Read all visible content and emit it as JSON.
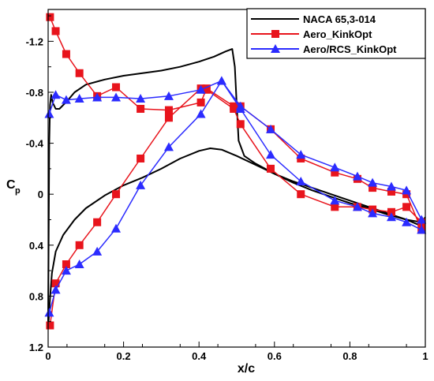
{
  "chart_data": {
    "type": "line",
    "xlabel": "x/c",
    "ylabel": "C",
    "ylabel_sub": "p",
    "xlim": [
      0,
      1
    ],
    "ylim": [
      1.2,
      -1.45
    ],
    "y_inverted": true,
    "x_ticks": [
      0,
      0.2,
      0.4,
      0.6,
      0.8,
      1
    ],
    "x_tick_labels": [
      "0",
      "0.2",
      "0.4",
      "0.6",
      "0.8",
      "1"
    ],
    "y_ticks": [
      -1.2,
      -0.8,
      -0.4,
      0,
      0.4,
      0.8,
      1.2
    ],
    "y_tick_labels": [
      "-1.2",
      "-0.8",
      "-0.4",
      "0",
      "0.4",
      "0.8",
      "1.2"
    ],
    "grid": false,
    "legend_position": "top-right",
    "series": [
      {
        "name": "NACA 65,3-014",
        "color": "#000000",
        "marker": "none",
        "segments": [
          [
            [
              1.0,
              0.18
            ],
            [
              0.99,
              0.22
            ],
            [
              0.95,
              0.2
            ],
            [
              0.9,
              0.16
            ],
            [
              0.85,
              0.11
            ],
            [
              0.8,
              0.07
            ],
            [
              0.75,
              0.02
            ],
            [
              0.7,
              -0.03
            ],
            [
              0.65,
              -0.09
            ],
            [
              0.6,
              -0.16
            ],
            [
              0.55,
              -0.24
            ],
            [
              0.52,
              -0.3
            ],
            [
              0.505,
              -0.42
            ],
            [
              0.5,
              -0.7
            ],
            [
              0.495,
              -1.0
            ],
            [
              0.488,
              -1.14
            ],
            [
              0.47,
              -1.12
            ],
            [
              0.44,
              -1.08
            ],
            [
              0.4,
              -1.04
            ],
            [
              0.35,
              -1.0
            ],
            [
              0.3,
              -0.97
            ],
            [
              0.25,
              -0.95
            ],
            [
              0.2,
              -0.93
            ],
            [
              0.15,
              -0.9
            ],
            [
              0.1,
              -0.86
            ],
            [
              0.07,
              -0.8
            ],
            [
              0.05,
              -0.73
            ],
            [
              0.03,
              -0.67
            ],
            [
              0.02,
              -0.67
            ],
            [
              0.012,
              -0.72
            ],
            [
              0.008,
              -0.78
            ],
            [
              0.005,
              -0.7
            ],
            [
              0.003,
              -0.4
            ],
            [
              0.002,
              0.0
            ],
            [
              0.001,
              0.5
            ],
            [
              0.0,
              1.0
            ]
          ],
          [
            [
              0.0,
              1.05
            ],
            [
              0.005,
              0.82
            ],
            [
              0.01,
              0.62
            ],
            [
              0.02,
              0.45
            ],
            [
              0.04,
              0.32
            ],
            [
              0.07,
              0.2
            ],
            [
              0.1,
              0.11
            ],
            [
              0.15,
              0.01
            ],
            [
              0.2,
              -0.07
            ],
            [
              0.25,
              -0.13
            ],
            [
              0.3,
              -0.2
            ],
            [
              0.35,
              -0.28
            ],
            [
              0.4,
              -0.34
            ],
            [
              0.43,
              -0.36
            ],
            [
              0.46,
              -0.35
            ],
            [
              0.5,
              -0.3
            ],
            [
              0.55,
              -0.23
            ],
            [
              0.6,
              -0.16
            ],
            [
              0.65,
              -0.1
            ],
            [
              0.7,
              -0.05
            ],
            [
              0.75,
              0.0
            ],
            [
              0.8,
              0.05
            ],
            [
              0.85,
              0.1
            ],
            [
              0.9,
              0.15
            ],
            [
              0.95,
              0.2
            ],
            [
              0.99,
              0.25
            ],
            [
              1.0,
              0.26
            ]
          ]
        ]
      },
      {
        "name": "Aero_KinkOpt",
        "color": "#e8141c",
        "marker": "square",
        "x": [
          0.005,
          0.02,
          0.048,
          0.083,
          0.13,
          0.18,
          0.245,
          0.32,
          0.405,
          0.42,
          0.492,
          0.51,
          0.59,
          0.67,
          0.76,
          0.82,
          0.86,
          0.91,
          0.95,
          0.99,
          0.99,
          0.95,
          0.91,
          0.86,
          0.82,
          0.76,
          0.67,
          0.59,
          0.51,
          0.492,
          0.42,
          0.405,
          0.32,
          0.245,
          0.18,
          0.13,
          0.083,
          0.048,
          0.02,
          0.005
        ],
        "y": [
          -1.39,
          -1.28,
          -1.1,
          -0.95,
          -0.77,
          -0.84,
          -0.67,
          -0.66,
          -0.72,
          -0.83,
          -0.69,
          -0.69,
          -0.51,
          -0.28,
          -0.17,
          -0.12,
          -0.05,
          -0.02,
          0.0,
          0.28,
          0.22,
          0.1,
          0.14,
          0.12,
          0.1,
          0.1,
          0.0,
          -0.2,
          -0.55,
          -0.67,
          -0.82,
          -0.83,
          -0.6,
          -0.28,
          0.0,
          0.22,
          0.4,
          0.55,
          0.7,
          1.03
        ]
      },
      {
        "name": "Aero/RCS_KinkOpt",
        "color": "#2b2bff",
        "marker": "triangle",
        "x": [
          0.003,
          0.02,
          0.048,
          0.083,
          0.13,
          0.18,
          0.245,
          0.32,
          0.405,
          0.46,
          0.51,
          0.59,
          0.67,
          0.76,
          0.82,
          0.86,
          0.91,
          0.95,
          0.99,
          0.99,
          0.95,
          0.91,
          0.86,
          0.82,
          0.76,
          0.67,
          0.59,
          0.51,
          0.46,
          0.405,
          0.32,
          0.245,
          0.18,
          0.13,
          0.083,
          0.048,
          0.02,
          0.003
        ],
        "y": [
          -0.63,
          -0.78,
          -0.74,
          -0.75,
          -0.76,
          -0.76,
          -0.75,
          -0.77,
          -0.82,
          -0.89,
          -0.69,
          -0.51,
          -0.31,
          -0.21,
          -0.14,
          -0.09,
          -0.06,
          -0.03,
          0.2,
          0.28,
          0.22,
          0.18,
          0.15,
          0.1,
          0.05,
          -0.1,
          -0.31,
          -0.67,
          -0.89,
          -0.63,
          -0.37,
          -0.07,
          0.27,
          0.45,
          0.55,
          0.6,
          0.75,
          0.93
        ]
      }
    ]
  }
}
